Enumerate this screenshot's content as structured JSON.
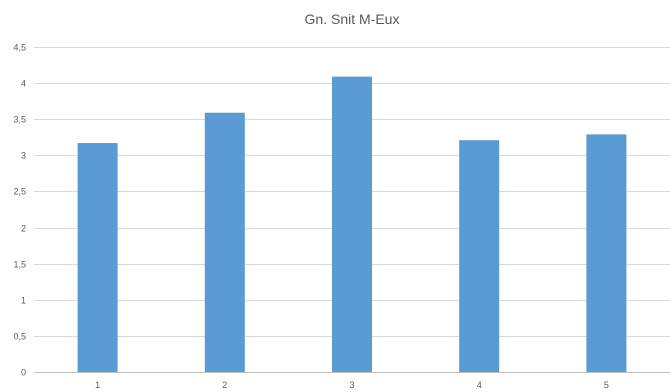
{
  "chart_data": {
    "type": "bar",
    "title": "Gn. Snit M-Eux",
    "categories": [
      "1",
      "2",
      "3",
      "4",
      "5"
    ],
    "values": [
      3.17,
      3.59,
      4.09,
      3.21,
      3.29
    ],
    "ylim": [
      0,
      4.5
    ],
    "y_ticks": [
      "0",
      "0,5",
      "1",
      "1,5",
      "2",
      "2,5",
      "3",
      "3,5",
      "4",
      "4,5"
    ],
    "grid": true,
    "legend": "none",
    "colors": {
      "bar": "#5b9bd5",
      "grid": "#d9d9d9",
      "text": "#595959"
    }
  }
}
